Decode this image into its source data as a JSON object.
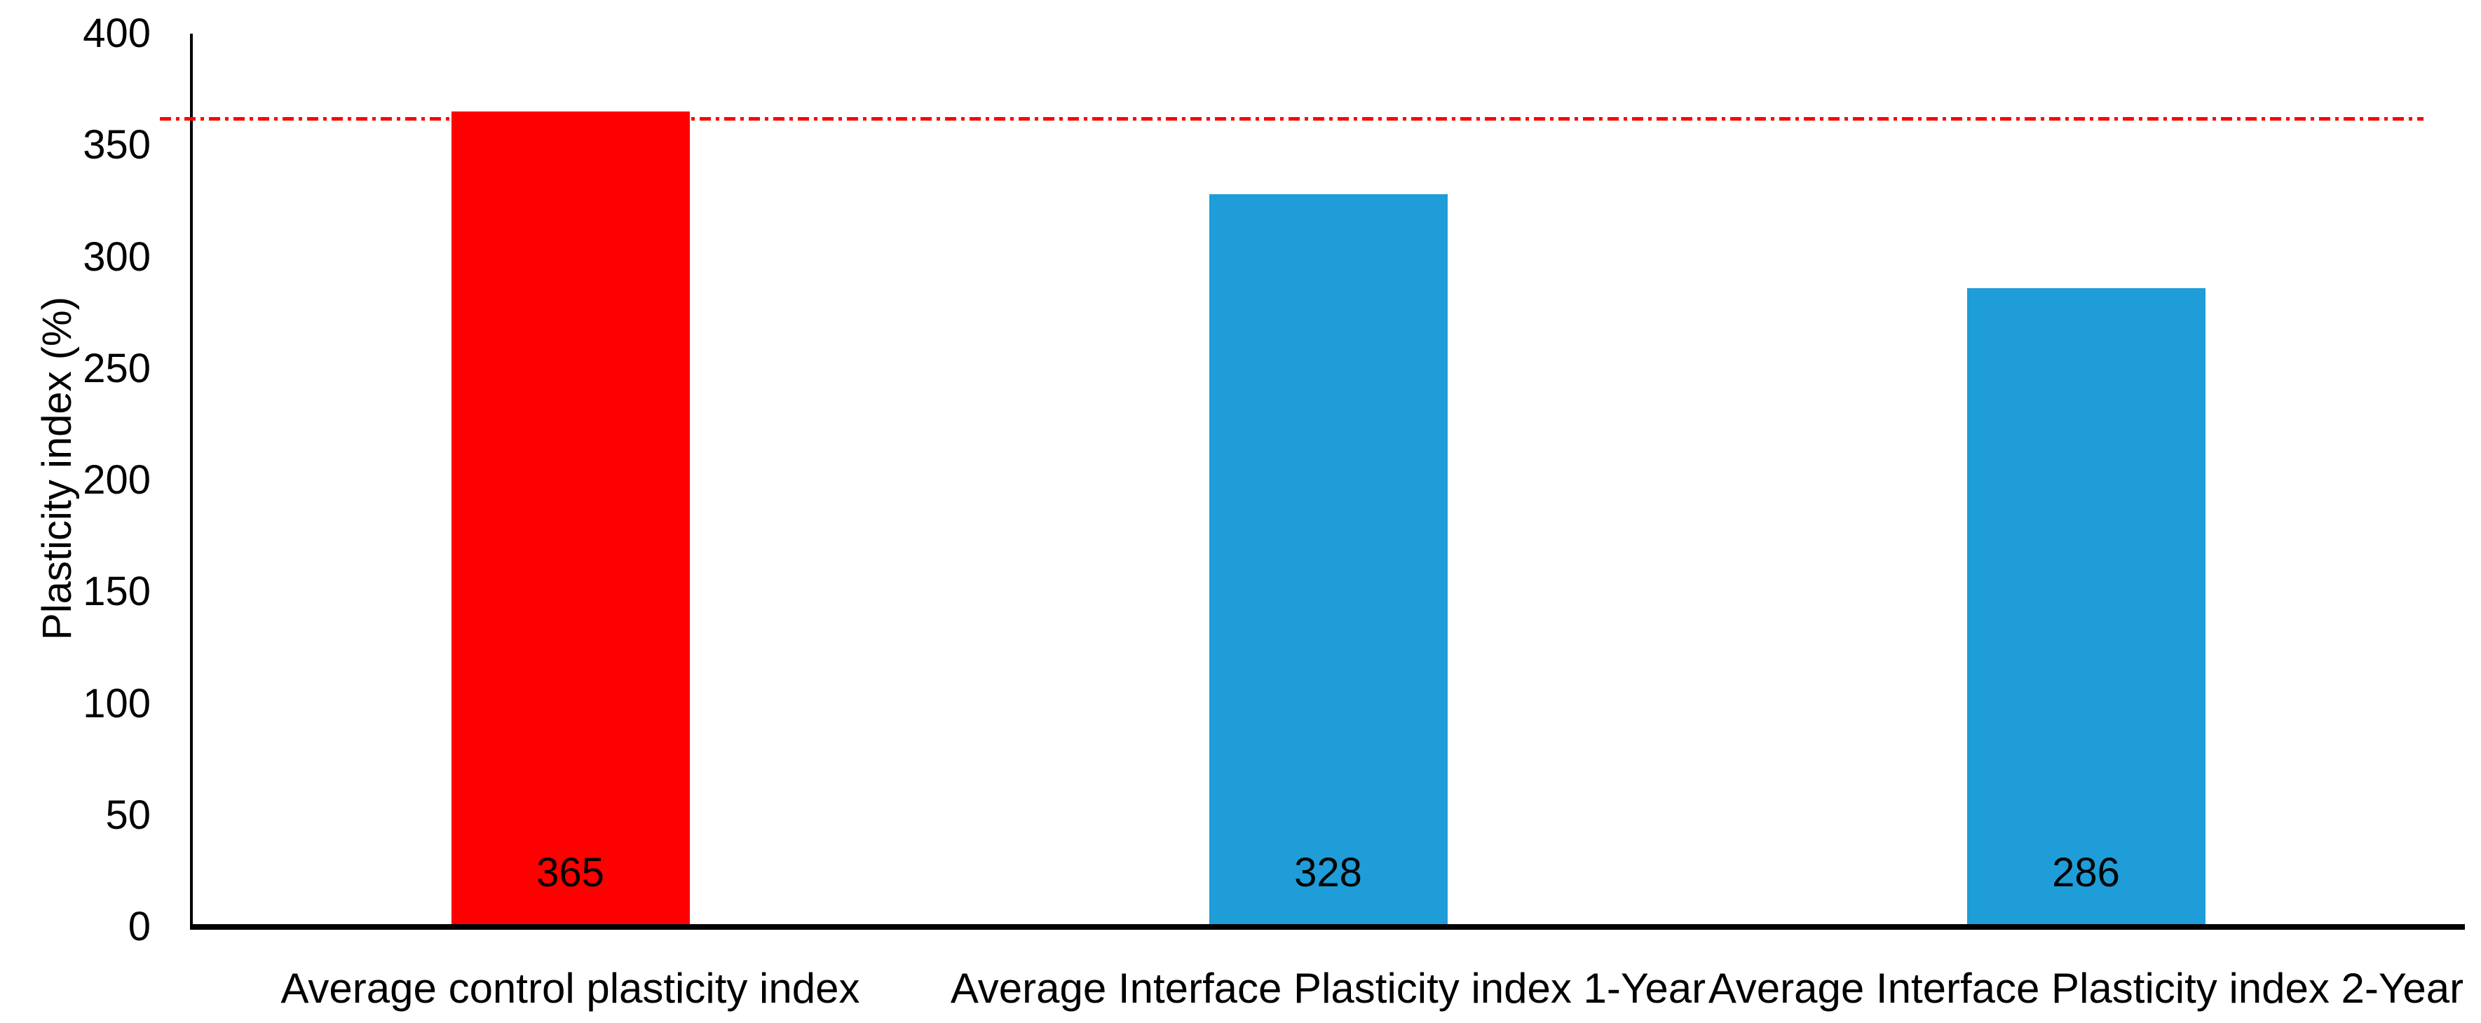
{
  "chart_data": {
    "type": "bar",
    "title": "",
    "xlabel": "",
    "ylabel": "Plasticity index (%)",
    "ylim": [
      0,
      400
    ],
    "ytick_interval": 50,
    "yticks": [
      0,
      50,
      100,
      150,
      200,
      250,
      300,
      350,
      400
    ],
    "grid": false,
    "legend": false,
    "categories": [
      "Average control plasticity index",
      "Average Interface Plasticity index 1-Year",
      "Average Interface Plasticity index 2-Year"
    ],
    "values": [
      365,
      328,
      286
    ],
    "data_labels": [
      "365",
      "328",
      "286"
    ],
    "bar_colors": [
      "#FE0000",
      "#1E9DD8",
      "#1E9DD8"
    ],
    "axis_color": "#000000",
    "text_color": "#000000",
    "reference_line": {
      "value": 362,
      "color": "#FE0000",
      "style": "dash-dot"
    }
  }
}
